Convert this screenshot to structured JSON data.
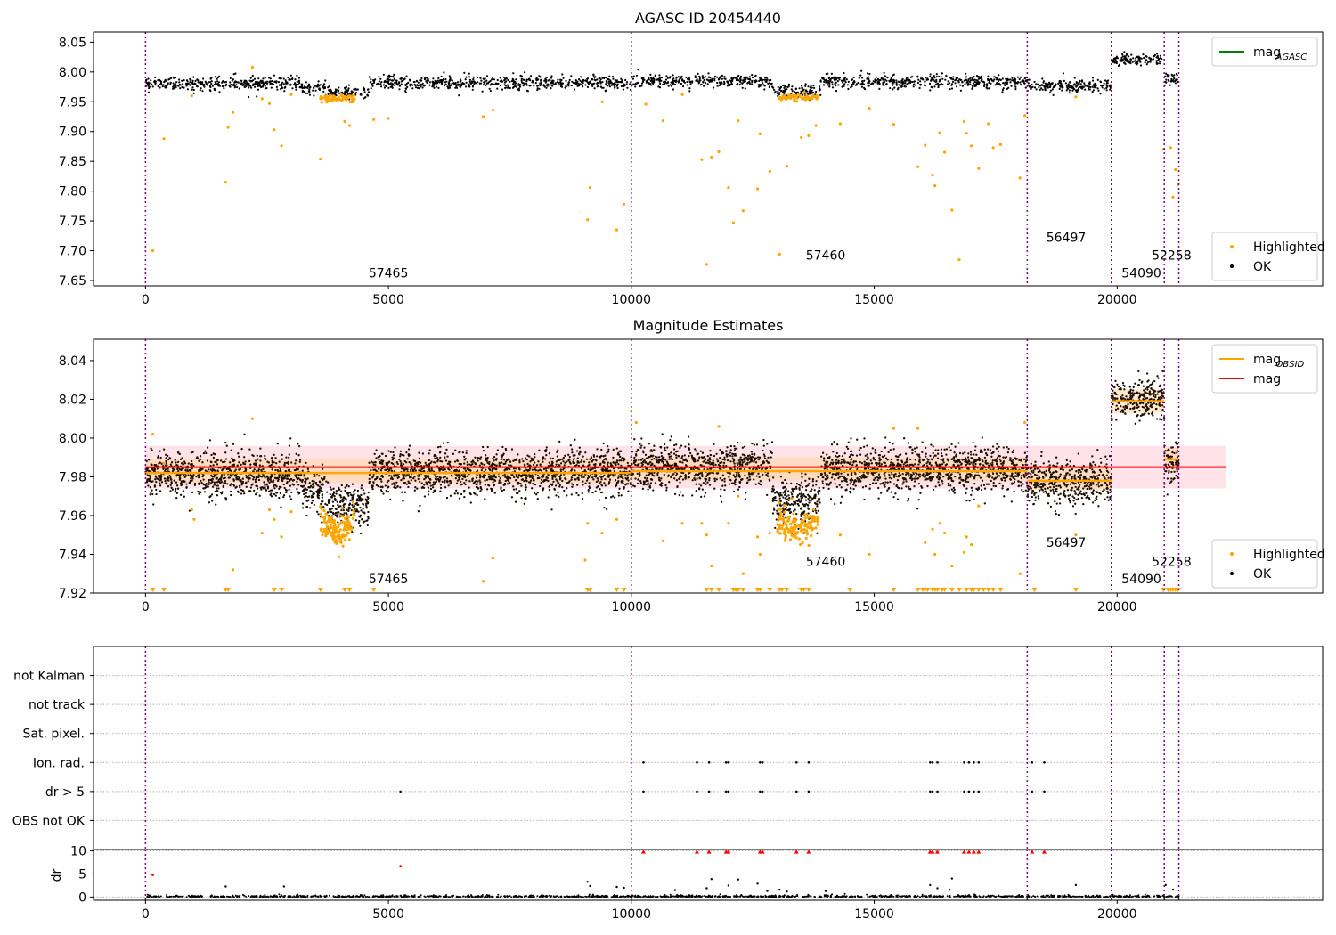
{
  "figure": {
    "background": "#ffffff",
    "colors": {
      "ok": "#000000",
      "highlighted": "#ffa500",
      "mag_agasc": "#008000",
      "mag_obsid": "#ffa500",
      "mag": "#ff0000",
      "band": "#ffc0cb",
      "obsid_boundary": "#800080",
      "flag_point": "#000000",
      "dr_clipped": "#ff0000"
    }
  },
  "chart_data": [
    {
      "id": "agasc",
      "type": "scatter",
      "title": "AGASC ID 20454440",
      "xlabel": "",
      "ylabel": "",
      "xlim": [
        -1070,
        24230
      ],
      "ylim": [
        7.641,
        8.067
      ],
      "xticks": [
        0,
        5000,
        10000,
        15000,
        20000
      ],
      "xtick_labels": [
        "0",
        "5000",
        "10000",
        "15000",
        "20000"
      ],
      "yticks": [
        7.65,
        7.7,
        7.75,
        7.8,
        7.85,
        7.9,
        7.95,
        8.0,
        8.05
      ],
      "ytick_labels": [
        "7.65",
        "7.70",
        "7.75",
        "7.80",
        "7.85",
        "7.90",
        "7.95",
        "8.00",
        "8.05"
      ],
      "grid": false,
      "vlines": [
        0,
        10000,
        18150,
        19880,
        20970,
        21270
      ],
      "annotations": [
        {
          "text": "57465",
          "x": 5000,
          "y": 7.655
        },
        {
          "text": "57460",
          "x": 14000,
          "y": 7.685
        },
        {
          "text": "56497",
          "x": 18950,
          "y": 7.715
        },
        {
          "text": "54090",
          "x": 20500,
          "y": 7.655
        },
        {
          "text": "52258",
          "x": 21120,
          "y": 7.685
        }
      ],
      "legend_top": {
        "placement": "top-right",
        "entries": [
          {
            "label": "mag",
            "subscript": "AGASC",
            "color": "#008000",
            "marker": "line"
          }
        ]
      },
      "legend_bottom": {
        "placement": "bottom-right",
        "entries": [
          {
            "label": "Highlighted",
            "color": "#ffa500",
            "marker": "dot"
          },
          {
            "label": "OK",
            "color": "#000000",
            "marker": "dot"
          }
        ]
      },
      "segments": [
        {
          "x0": 0,
          "x1": 3200,
          "mean": 7.981,
          "std": 0.0055
        },
        {
          "x0": 3200,
          "x1": 3700,
          "mean": 7.974,
          "std": 0.0055
        },
        {
          "x0": 3700,
          "x1": 4600,
          "mean": 7.965,
          "std": 0.0055
        },
        {
          "x0": 4600,
          "x1": 10000,
          "mean": 7.982,
          "std": 0.0055
        },
        {
          "x0": 10000,
          "x1": 12900,
          "mean": 7.985,
          "std": 0.0055
        },
        {
          "x0": 12900,
          "x1": 13900,
          "mean": 7.968,
          "std": 0.0055
        },
        {
          "x0": 13900,
          "x1": 18150,
          "mean": 7.984,
          "std": 0.0055
        },
        {
          "x0": 18150,
          "x1": 19880,
          "mean": 7.977,
          "std": 0.0055
        },
        {
          "x0": 19880,
          "x1": 20970,
          "mean": 8.02,
          "std": 0.005
        },
        {
          "x0": 20970,
          "x1": 21270,
          "mean": 7.988,
          "std": 0.005
        }
      ],
      "highlighted_outliers": {
        "x": [
          150,
          380,
          950,
          1650,
          1700,
          1800,
          2200,
          2400,
          2550,
          2650,
          2800,
          3000,
          3600,
          4100,
          4200,
          4700,
          5000,
          6950,
          7150,
          9100,
          9150,
          9400,
          9700,
          9850,
          10300,
          10650,
          11050,
          11450,
          11550,
          11650,
          11800,
          12000,
          12100,
          12200,
          12300,
          12600,
          12650,
          12850,
          13050,
          13200,
          13500,
          13650,
          13800,
          14300,
          14900,
          15400,
          15900,
          16050,
          16200,
          16250,
          16350,
          16450,
          16600,
          16750,
          16850,
          16900,
          17000,
          17150,
          17350,
          17450,
          17600,
          18000,
          18100,
          19150,
          20950,
          21100,
          21150,
          21200,
          21250
        ],
        "y": [
          7.7,
          7.888,
          7.96,
          7.815,
          7.907,
          7.932,
          8.008,
          7.955,
          7.947,
          7.903,
          7.876,
          7.962,
          7.854,
          7.917,
          7.91,
          7.92,
          7.922,
          7.925,
          7.936,
          7.752,
          7.806,
          7.95,
          7.735,
          7.778,
          7.946,
          7.918,
          7.962,
          7.853,
          7.677,
          7.857,
          7.866,
          7.806,
          7.747,
          7.918,
          7.767,
          7.804,
          7.896,
          7.833,
          7.694,
          7.842,
          7.89,
          7.893,
          7.91,
          7.913,
          7.939,
          7.912,
          7.841,
          7.877,
          7.827,
          7.809,
          7.898,
          7.865,
          7.768,
          7.685,
          7.917,
          7.897,
          7.876,
          7.838,
          7.913,
          7.873,
          7.878,
          7.822,
          7.927,
          7.958,
          7.87,
          7.873,
          7.79,
          7.836,
          7.811
        ]
      }
    },
    {
      "id": "mag-estimates",
      "type": "scatter",
      "title": "Magnitude Estimates",
      "xlabel": "",
      "ylabel": "",
      "xlim": [
        -1070,
        24230
      ],
      "ylim": [
        7.92,
        8.051
      ],
      "xticks": [
        0,
        5000,
        10000,
        15000,
        20000
      ],
      "xtick_labels": [
        "0",
        "5000",
        "10000",
        "15000",
        "20000"
      ],
      "yticks": [
        7.92,
        7.94,
        7.96,
        7.98,
        8.0,
        8.02,
        8.04
      ],
      "ytick_labels": [
        "7.92",
        "7.94",
        "7.96",
        "7.98",
        "8.00",
        "8.02",
        "8.04"
      ],
      "grid": false,
      "vlines": [
        0,
        10000,
        18150,
        19880,
        20970,
        21270
      ],
      "annotations": [
        {
          "text": "57465",
          "x": 5000,
          "y": 7.925
        },
        {
          "text": "57460",
          "x": 14000,
          "y": 7.934
        },
        {
          "text": "56497",
          "x": 18950,
          "y": 7.944
        },
        {
          "text": "54090",
          "x": 20500,
          "y": 7.925
        },
        {
          "text": "52258",
          "x": 21120,
          "y": 7.934
        }
      ],
      "mag": {
        "value": 7.985,
        "band": [
          7.974,
          7.996
        ],
        "x0": 0,
        "x1": 22250
      },
      "mag_obsid": [
        {
          "x0": 0,
          "x1": 10000,
          "value": 7.982,
          "band": [
            7.977,
            7.989
          ]
        },
        {
          "x0": 10000,
          "x1": 18150,
          "value": 7.983,
          "band": [
            7.978,
            7.99
          ]
        },
        {
          "x0": 18150,
          "x1": 19880,
          "value": 7.978,
          "band": [
            7.973,
            7.985
          ]
        },
        {
          "x0": 19880,
          "x1": 20970,
          "value": 8.019,
          "band": [
            8.013,
            8.025
          ]
        },
        {
          "x0": 20970,
          "x1": 21270,
          "value": 7.989,
          "band": [
            7.983,
            7.995
          ]
        }
      ],
      "legend_top": {
        "placement": "top-right",
        "entries": [
          {
            "label": "mag",
            "subscript": "OBSID",
            "color": "#ffa500",
            "marker": "line"
          },
          {
            "label": "mag",
            "subscript": "",
            "color": "#ff0000",
            "marker": "line"
          }
        ]
      },
      "legend_bottom": {
        "placement": "bottom-right",
        "entries": [
          {
            "label": "Highlighted",
            "color": "#ffa500",
            "marker": "dot"
          },
          {
            "label": "OK",
            "color": "#000000",
            "marker": "dot"
          }
        ]
      },
      "highlighted_outliers": {
        "x": [
          150,
          380,
          950,
          1000,
          1800,
          2200,
          2400,
          2550,
          2650,
          2800,
          3000,
          6950,
          7150,
          9050,
          9100,
          9400,
          9700,
          10000,
          10100,
          10650,
          11050,
          11450,
          11550,
          11650,
          11800,
          12000,
          12200,
          12300,
          12600,
          12650,
          12850,
          14300,
          14900,
          15400,
          15900,
          16050,
          16200,
          16250,
          16350,
          16450,
          16600,
          16850,
          16900,
          17000,
          17150,
          18000,
          18100,
          19150
        ],
        "y": [
          8.002,
          7.987,
          7.963,
          7.958,
          7.932,
          8.01,
          7.951,
          7.963,
          7.958,
          7.949,
          7.962,
          7.926,
          7.938,
          7.937,
          7.956,
          7.951,
          7.958,
          8.014,
          8.008,
          7.947,
          7.956,
          7.956,
          7.95,
          7.934,
          8.006,
          7.956,
          7.97,
          7.93,
          7.949,
          7.94,
          7.951,
          7.95,
          7.94,
          8.005,
          8.005,
          7.946,
          7.953,
          7.94,
          7.956,
          7.951,
          7.934,
          7.941,
          7.949,
          7.945,
          7.965,
          7.93,
          8.008,
          7.95
        ]
      },
      "clipped_low": {
        "x": [
          150,
          380,
          1650,
          1700,
          2650,
          2800,
          3600,
          4100,
          4200,
          4700,
          9100,
          9150,
          9700,
          9850,
          11550,
          11650,
          11800,
          12100,
          12150,
          12200,
          12300,
          12600,
          12650,
          12850,
          13050,
          13100,
          13200,
          13500,
          13550,
          13650,
          14500,
          15400,
          15900,
          16000,
          16050,
          16100,
          16200,
          16250,
          16300,
          16400,
          16450,
          16600,
          16750,
          16900,
          17000,
          17050,
          17150,
          17250,
          17350,
          17450,
          17600,
          18300,
          19150,
          20950,
          21050,
          21100,
          21150,
          21200,
          21250
        ]
      }
    },
    {
      "id": "flags",
      "type": "scatter",
      "title": "",
      "xlim": [
        -1070,
        24230
      ],
      "categories": [
        "OBS not OK",
        "dr > 5",
        "Ion. rad.",
        "Sat. pixel.",
        "not track",
        "not Kalman"
      ],
      "vlines": [
        0,
        10000,
        18150,
        19880,
        20970,
        21270
      ],
      "grid": true,
      "flag_points": [
        {
          "category": "dr > 5",
          "x": [
            5250,
            10250,
            11350,
            11600,
            11950,
            12000,
            12650,
            12700,
            13400,
            13650,
            16150,
            16200,
            16300,
            16850,
            16950,
            17050,
            17150,
            18250,
            18500
          ]
        },
        {
          "category": "Ion. rad.",
          "x": [
            10250,
            11350,
            11600,
            11950,
            12000,
            12650,
            12700,
            13400,
            13650,
            16150,
            16200,
            16300,
            16850,
            16950,
            17050,
            17150,
            18250,
            18500
          ]
        }
      ]
    },
    {
      "id": "dr",
      "type": "scatter",
      "title": "",
      "xlabel": "",
      "ylabel": "dr",
      "xlim": [
        -1070,
        24230
      ],
      "ylim": [
        -0.7,
        10.3
      ],
      "xticks": [
        0,
        5000,
        10000,
        15000,
        20000
      ],
      "xtick_labels": [
        "0",
        "5000",
        "10000",
        "15000",
        "20000"
      ],
      "yticks": [
        0,
        5,
        10
      ],
      "ytick_labels": [
        "0",
        "5",
        "10"
      ],
      "grid": true,
      "vlines": [
        0,
        10000,
        18150,
        19880,
        20970,
        21270
      ],
      "points": {
        "x": [
          150,
          1650,
          2850,
          5250,
          9100,
          9150,
          9700,
          9850,
          10900,
          11550,
          11650,
          12000,
          12200,
          12600,
          12800,
          13050,
          13200,
          14000,
          16150,
          16300,
          16550,
          16600,
          19150,
          21000,
          21150
        ],
        "y": [
          4.8,
          2.3,
          2.3,
          6.7,
          3.3,
          2.4,
          2.2,
          2.0,
          1.5,
          1.9,
          3.9,
          2.5,
          3.8,
          2.9,
          1.3,
          1.6,
          1.2,
          1.3,
          2.6,
          1.9,
          1.6,
          4.0,
          2.6,
          2.6,
          1.6
        ]
      },
      "clipped_high": {
        "x": [
          10250,
          11350,
          11600,
          11950,
          12000,
          12650,
          12700,
          13400,
          13650,
          16150,
          16200,
          16300,
          16850,
          16950,
          17050,
          17150,
          18250,
          18500
        ]
      },
      "baseline": {
        "x0": 0,
        "x1": 21270,
        "value": 0.1
      }
    }
  ]
}
